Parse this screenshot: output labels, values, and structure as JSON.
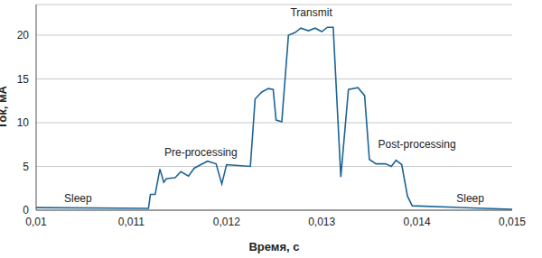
{
  "chart_data": {
    "type": "line",
    "x_label": "Время, с",
    "y_label": "Ток, мА",
    "color": "#1d6496",
    "grid": true,
    "xlim": [
      0.01,
      0.015
    ],
    "xticks": [
      {
        "value": 0.01,
        "label": "0,01"
      },
      {
        "value": 0.011,
        "label": "0,011"
      },
      {
        "value": 0.012,
        "label": "0,012"
      },
      {
        "value": 0.013,
        "label": "0,013"
      },
      {
        "value": 0.014,
        "label": "0,014"
      },
      {
        "value": 0.015,
        "label": "0,015"
      }
    ],
    "ylim": [
      0,
      23.5
    ],
    "yticks": [
      0,
      5,
      10,
      15,
      20
    ],
    "x": [
      0.01,
      0.01118,
      0.0112,
      0.01125,
      0.0113,
      0.01134,
      0.01137,
      0.01146,
      0.01152,
      0.0116,
      0.01166,
      0.01173,
      0.0118,
      0.01189,
      0.01195,
      0.012,
      0.01225,
      0.0123,
      0.01237,
      0.01244,
      0.01249,
      0.01252,
      0.01258,
      0.01265,
      0.01272,
      0.01278,
      0.01286,
      0.01293,
      0.013,
      0.01306,
      0.01312,
      0.0132,
      0.01328,
      0.01338,
      0.01345,
      0.0135,
      0.01357,
      0.01367,
      0.01373,
      0.01378,
      0.01384,
      0.0139,
      0.01395,
      0.015
    ],
    "values": [
      0.3,
      0.2,
      1.8,
      1.8,
      4.7,
      3.2,
      3.6,
      3.7,
      4.4,
      3.9,
      4.8,
      5.2,
      5.6,
      5.3,
      3.0,
      5.2,
      5.0,
      12.7,
      13.5,
      13.9,
      13.8,
      10.3,
      10.1,
      20.0,
      20.3,
      20.8,
      20.5,
      20.8,
      20.4,
      20.9,
      20.9,
      3.8,
      13.8,
      14.0,
      13.1,
      5.8,
      5.3,
      5.3,
      5.0,
      5.7,
      5.2,
      1.6,
      0.5,
      0.1
    ],
    "annotations": [
      {
        "text": "Sleep",
        "x": 0.01044,
        "y": 1.4
      },
      {
        "text": "Pre-processing",
        "x": 0.01173,
        "y": 6.6
      },
      {
        "text": "Transmit",
        "x": 0.01289,
        "y": 22.6
      },
      {
        "text": "Post-processing",
        "x": 0.014,
        "y": 7.6
      },
      {
        "text": "Sleep",
        "x": 0.01456,
        "y": 1.4
      }
    ]
  }
}
